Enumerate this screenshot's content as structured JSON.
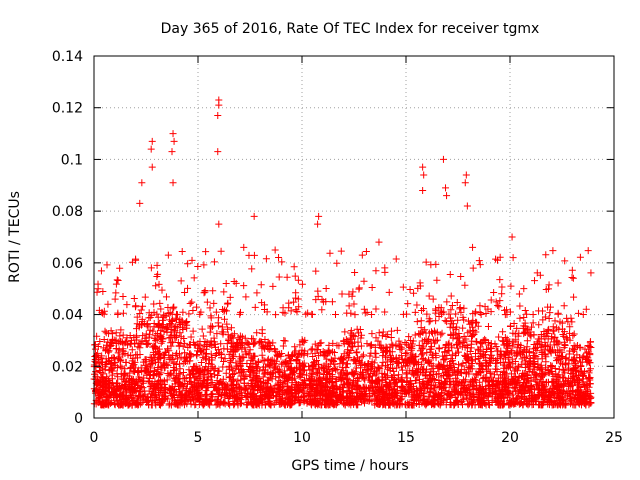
{
  "chart_data": {
    "type": "scatter",
    "title": "Day 365 of 2016, Rate Of TEC Index for receiver tgmx",
    "xlabel": "GPS time / hours",
    "ylabel": "ROTI / TECUs",
    "xlim": [
      0,
      25
    ],
    "ylim": [
      0,
      0.14
    ],
    "x_ticks": [
      0,
      5,
      10,
      15,
      20,
      25
    ],
    "x_tick_labels": [
      "0",
      "5",
      "10",
      "15",
      "20",
      "25"
    ],
    "y_ticks": [
      0,
      0.02,
      0.04,
      0.06,
      0.08,
      0.1,
      0.12,
      0.14
    ],
    "y_tick_labels": [
      "0",
      "0.02",
      "0.04",
      "0.06",
      "0.08",
      "0.1",
      "0.12",
      "0.14"
    ],
    "grid": true,
    "marker": "+",
    "marker_color": "#ff0000",
    "x_range_of_data": [
      0,
      23.9
    ],
    "bulk_range": [
      0.005,
      0.04
    ],
    "notable_points": [
      {
        "x": 6.0,
        "y": 0.123
      },
      {
        "x": 6.0,
        "y": 0.121
      },
      {
        "x": 5.95,
        "y": 0.117
      },
      {
        "x": 5.95,
        "y": 0.103
      },
      {
        "x": 3.8,
        "y": 0.11
      },
      {
        "x": 3.85,
        "y": 0.107
      },
      {
        "x": 3.75,
        "y": 0.103
      },
      {
        "x": 2.8,
        "y": 0.107
      },
      {
        "x": 2.75,
        "y": 0.104
      },
      {
        "x": 2.8,
        "y": 0.097
      },
      {
        "x": 16.8,
        "y": 0.1
      },
      {
        "x": 15.8,
        "y": 0.097
      },
      {
        "x": 15.85,
        "y": 0.094
      },
      {
        "x": 17.9,
        "y": 0.094
      },
      {
        "x": 17.85,
        "y": 0.091
      },
      {
        "x": 17.95,
        "y": 0.082
      },
      {
        "x": 2.3,
        "y": 0.091
      },
      {
        "x": 3.8,
        "y": 0.091
      },
      {
        "x": 16.9,
        "y": 0.089
      },
      {
        "x": 16.95,
        "y": 0.086
      },
      {
        "x": 15.8,
        "y": 0.088
      },
      {
        "x": 7.7,
        "y": 0.078
      },
      {
        "x": 10.8,
        "y": 0.078
      },
      {
        "x": 10.75,
        "y": 0.075
      },
      {
        "x": 6.0,
        "y": 0.075
      },
      {
        "x": 2.2,
        "y": 0.083
      },
      {
        "x": 20.1,
        "y": 0.07
      },
      {
        "x": 13.7,
        "y": 0.068
      },
      {
        "x": 7.2,
        "y": 0.066
      },
      {
        "x": 12.9,
        "y": 0.063
      },
      {
        "x": 2.0,
        "y": 0.061
      },
      {
        "x": 18.2,
        "y": 0.066
      },
      {
        "x": 19.4,
        "y": 0.061
      },
      {
        "x": 0.2,
        "y": 0.05
      }
    ]
  }
}
